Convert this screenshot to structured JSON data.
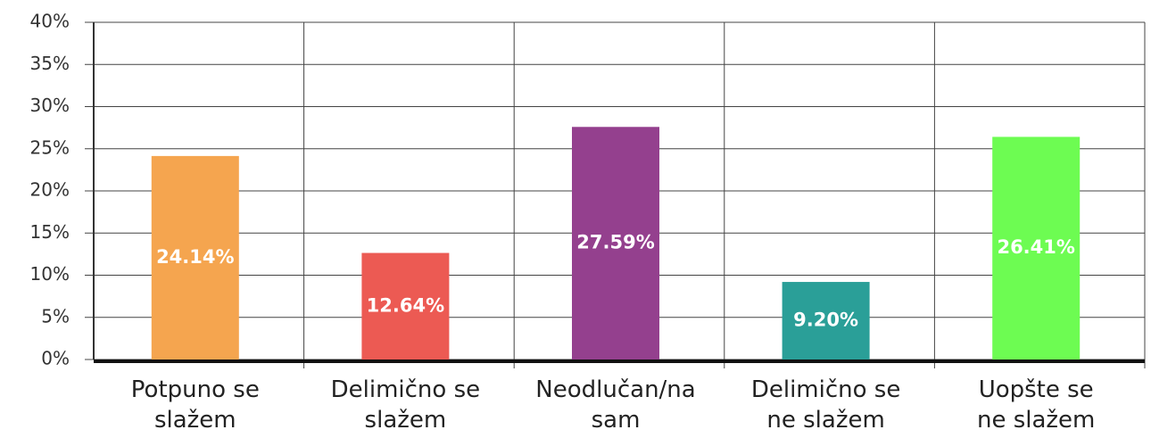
{
  "chart_data": {
    "type": "bar",
    "categories": [
      "Potpuno se\nslažem",
      "Delimično  se\nslažem",
      "Neodlučan/na\nsam",
      "Delimično  se\nne slažem",
      "Uopšte se\nne slažem"
    ],
    "values": [
      24.14,
      12.64,
      27.59,
      9.2,
      26.41
    ],
    "value_labels": [
      "24.14%",
      "12.64%",
      "27.59%",
      "9.20%",
      "26.41%"
    ],
    "colors": [
      "#f5a54f",
      "#ec5a53",
      "#94408e",
      "#2a9f98",
      "#6dfc52"
    ],
    "ylim": [
      0,
      40
    ],
    "yticks": [
      {
        "value": 0,
        "label": "0%"
      },
      {
        "value": 5,
        "label": "5%"
      },
      {
        "value": 10,
        "label": "10%"
      },
      {
        "value": 15,
        "label": "15%"
      },
      {
        "value": 20,
        "label": "20%"
      },
      {
        "value": 25,
        "label": "25%"
      },
      {
        "value": 30,
        "label": "30%"
      },
      {
        "value": 35,
        "label": "35%"
      },
      {
        "value": 40,
        "label": "40%"
      }
    ],
    "grid": true
  }
}
